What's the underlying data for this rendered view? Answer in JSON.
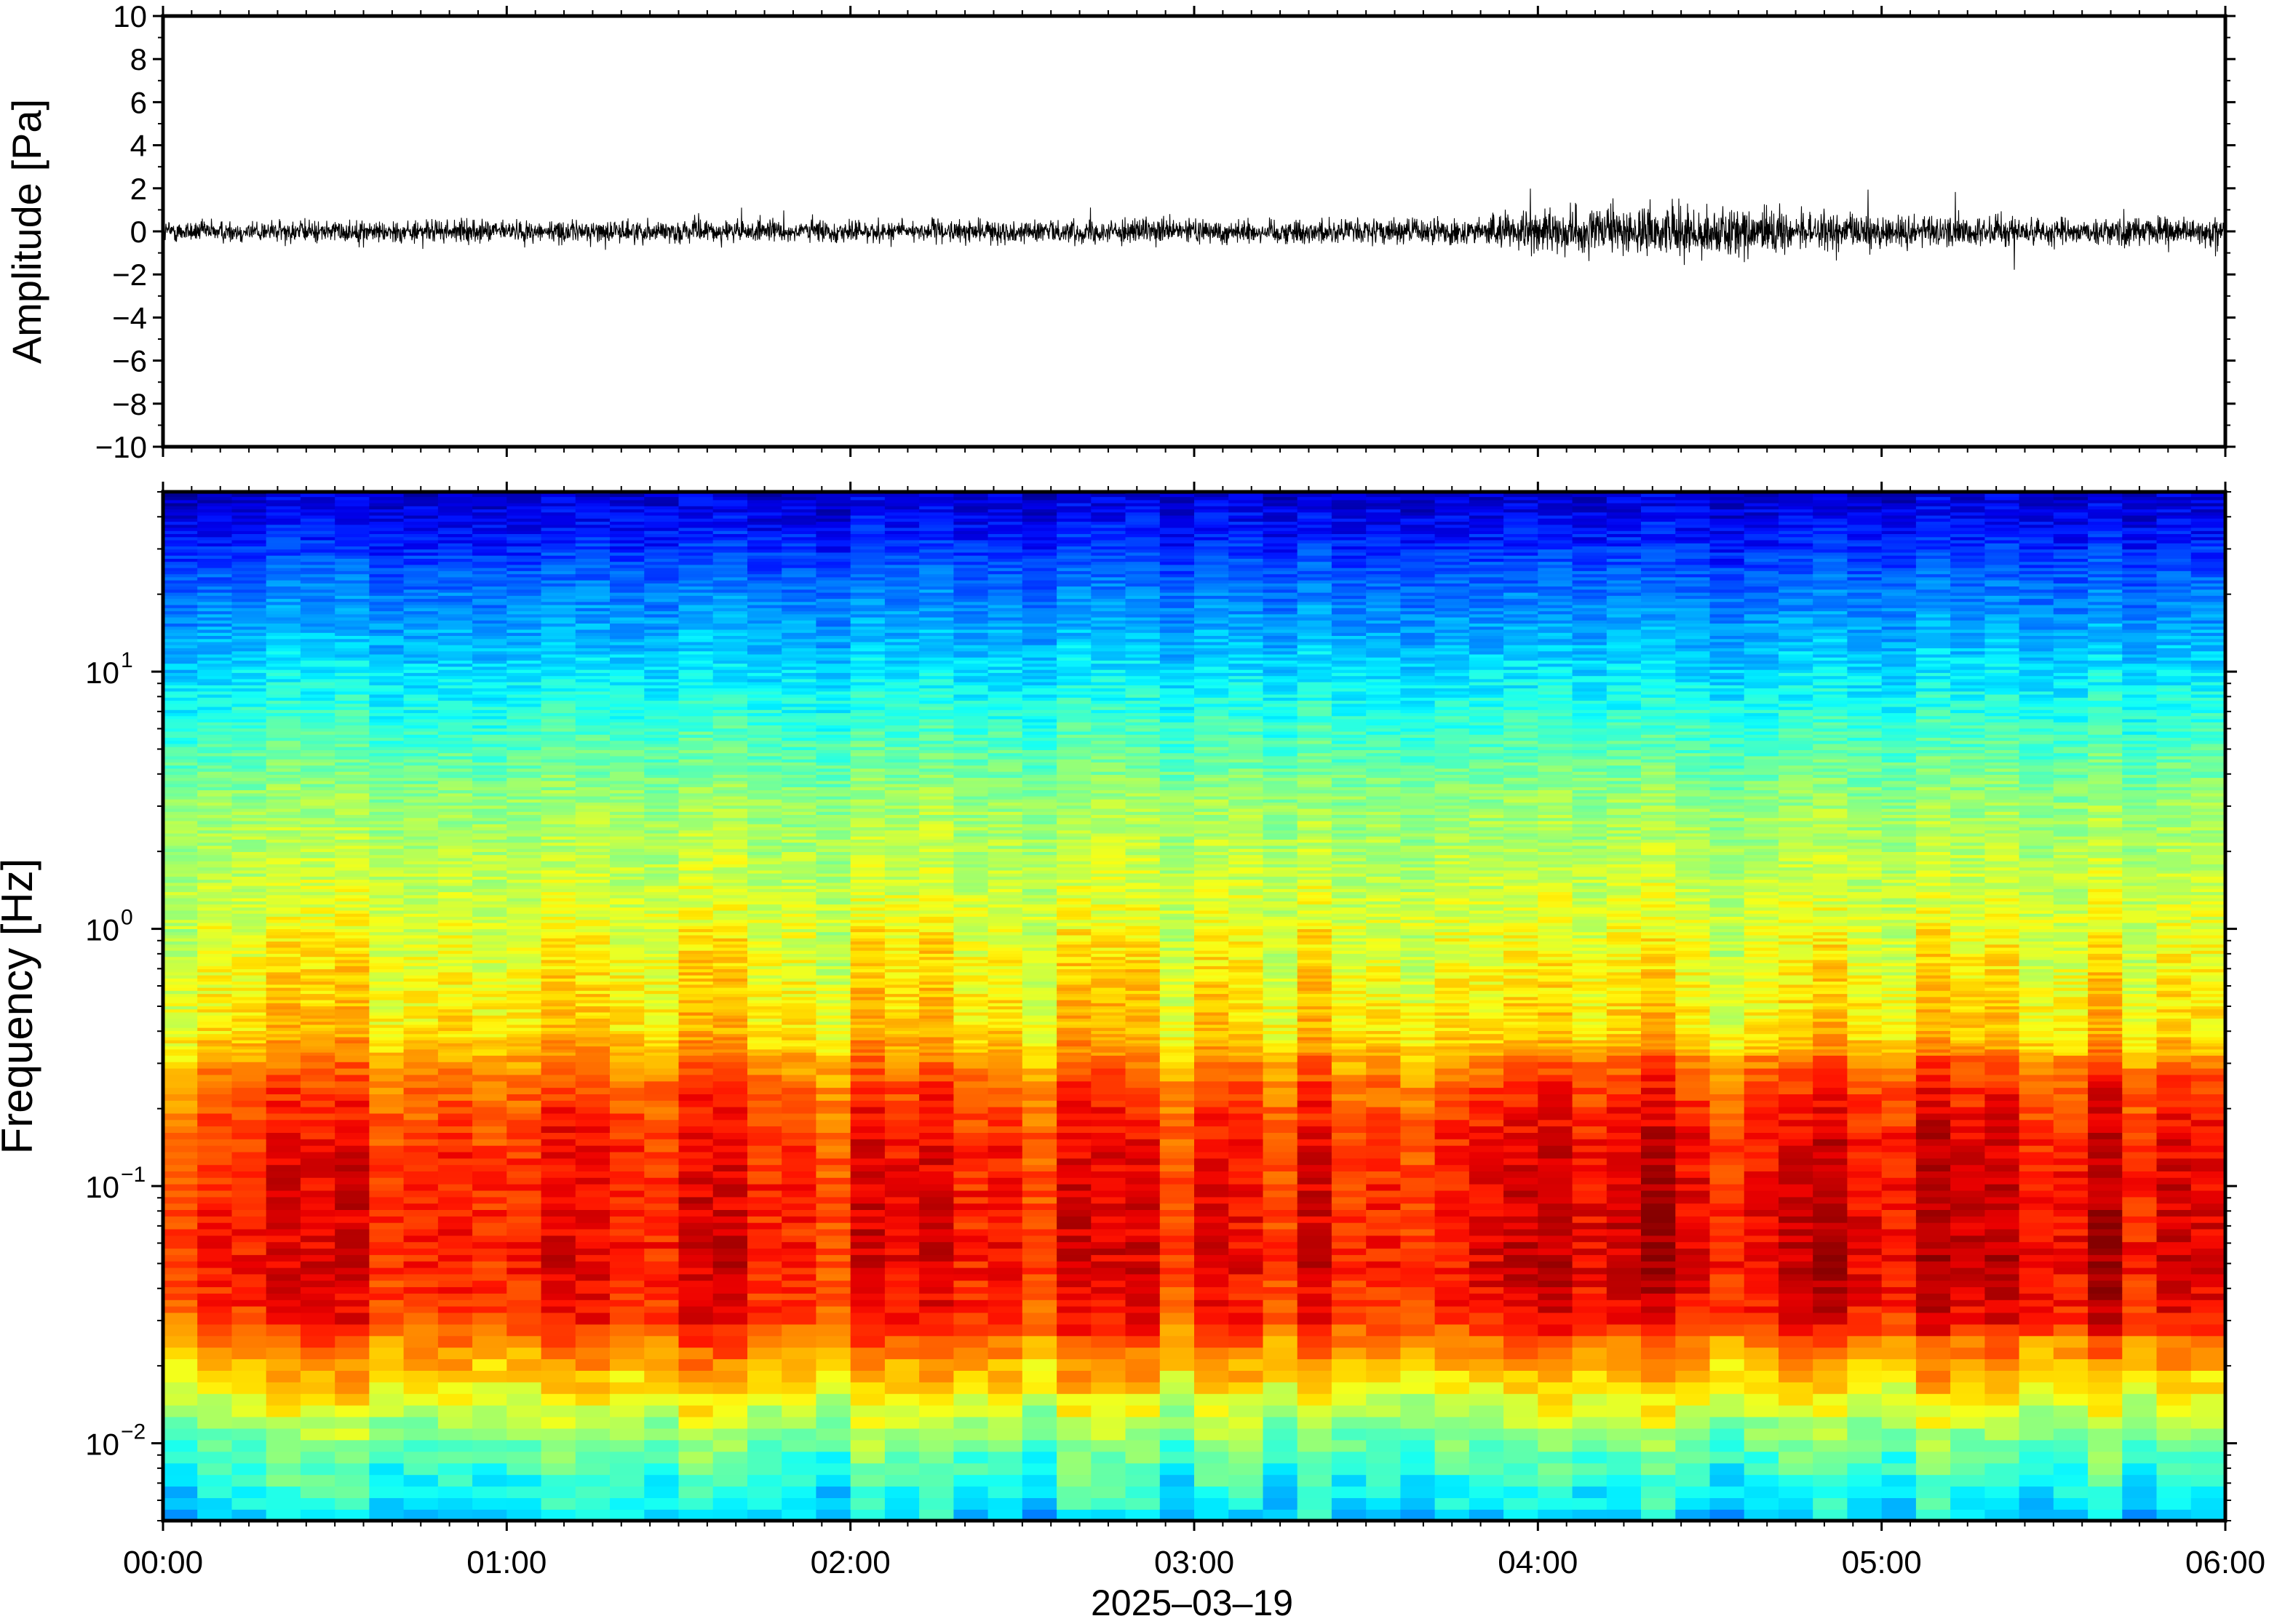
{
  "chart_data": [
    {
      "type": "line",
      "ylabel": "Amplitude [Pa]",
      "ylim": [
        -10,
        10
      ],
      "yticks": [
        -10,
        -8,
        -6,
        -4,
        -2,
        0,
        2,
        4,
        6,
        8,
        10
      ],
      "ytick_labels": [
        "−10",
        "−8",
        "−6",
        "−4",
        "−2",
        "0",
        "2",
        "4",
        "6",
        "8",
        "10"
      ],
      "xlim": [
        "00:00",
        "06:00"
      ],
      "series": [
        {
          "color": "#000000",
          "description": "continuous infrasound pressure trace; noise envelope roughly ±0.5 Pa, somewhat larger (±1–2 Pa) between about 04:00 and 05:00",
          "envelope_hours": [
            0,
            0.5,
            1,
            1.5,
            2,
            2.5,
            3,
            3.5,
            3.8,
            4.0,
            4.3,
            4.5,
            4.8,
            5.0,
            5.5,
            6.0
          ],
          "envelope_pa": [
            0.45,
            0.45,
            0.45,
            0.45,
            0.45,
            0.45,
            0.5,
            0.5,
            0.55,
            0.85,
            1.0,
            1.05,
            0.75,
            0.7,
            0.6,
            0.55
          ]
        }
      ]
    },
    {
      "type": "heatmap",
      "ylabel": "Frequency [Hz]",
      "yscale": "log",
      "ylim": [
        0.005,
        50
      ],
      "yticks": [
        0.01,
        0.1,
        1,
        10
      ],
      "ytick_labels": [
        {
          "base": "10",
          "exp": "−2"
        },
        {
          "base": "10",
          "exp": "−1"
        },
        {
          "base": "10",
          "exp": "0"
        },
        {
          "base": "10",
          "exp": "1"
        }
      ],
      "xticks": [
        "00:00",
        "01:00",
        "02:00",
        "03:00",
        "04:00",
        "05:00",
        "06:00"
      ],
      "xlabel": "2025–03–19",
      "xlim": [
        "00:00",
        "06:00"
      ],
      "colormap": "jet",
      "grid": false,
      "description": "spectrogram; highest power (red) between about 0.03 and 0.2 Hz, green/yellow around 1 Hz, blue above about 10 Hz, cyan near 0.006 Hz",
      "power_profile_log10f": [
        -2.3,
        -2.0,
        -1.7,
        -1.5,
        -1.3,
        -1.0,
        -0.8,
        -0.6,
        -0.4,
        0.0,
        0.5,
        0.85,
        1.1,
        1.3,
        1.5,
        1.7
      ],
      "power_profile_level": [
        0.33,
        0.48,
        0.7,
        0.84,
        0.87,
        0.86,
        0.84,
        0.78,
        0.66,
        0.6,
        0.52,
        0.4,
        0.31,
        0.24,
        0.15,
        0.07
      ]
    }
  ]
}
